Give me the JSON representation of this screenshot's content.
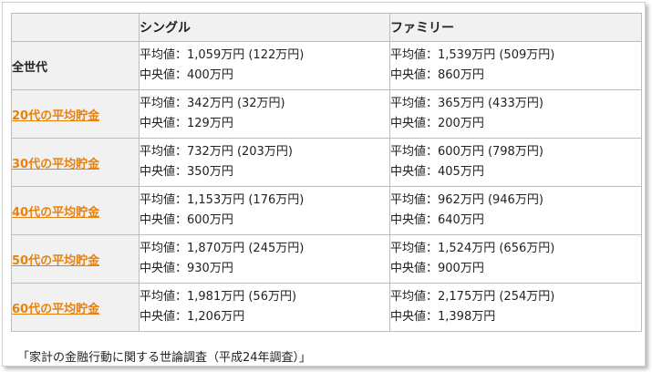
{
  "table": {
    "headers": [
      "",
      "シングル",
      "ファミリー"
    ],
    "rows": [
      {
        "label": "全世代",
        "link": false,
        "single": [
          "平均値：1,059万円 (122万円)",
          "中央値：400万円"
        ],
        "family": [
          "平均値：1,539万円 (509万円)",
          "中央値：860万円"
        ]
      },
      {
        "label": "20代の平均貯金",
        "link": true,
        "single": [
          "平均値：342万円 (32万円)",
          "中央値：129万円"
        ],
        "family": [
          "平均値：365万円 (433万円)",
          "中央値：200万円"
        ]
      },
      {
        "label": "30代の平均貯金",
        "link": true,
        "single": [
          "平均値：732万円 (203万円)",
          "中央値：350万円"
        ],
        "family": [
          "平均値：600万円 (798万円)",
          "中央値：405万円"
        ]
      },
      {
        "label": "40代の平均貯金",
        "link": true,
        "single": [
          "平均値：1,153万円 (176万円)",
          "中央値：600万円"
        ],
        "family": [
          "平均値：962万円 (946万円)",
          "中央値：640万円"
        ]
      },
      {
        "label": "50代の平均貯金",
        "link": true,
        "single": [
          "平均値：1,870万円 (245万円)",
          "中央値：930万円"
        ],
        "family": [
          "平均値：1,524万円 (656万円)",
          "中央値：900万円"
        ]
      },
      {
        "label": "60代の平均貯金",
        "link": true,
        "single": [
          "平均値：1,981万円 (56万円)",
          "中央値：1,206万円"
        ],
        "family": [
          "平均値：2,175万円 (254万円)",
          "中央値：1,398万円"
        ]
      }
    ]
  },
  "caption": "「家計の金融行動に関する世論調査（平成24年調査）」",
  "colors": {
    "link": "#e8820e",
    "header_bg": "#f1f1f1",
    "border": "#bdbdbd"
  }
}
